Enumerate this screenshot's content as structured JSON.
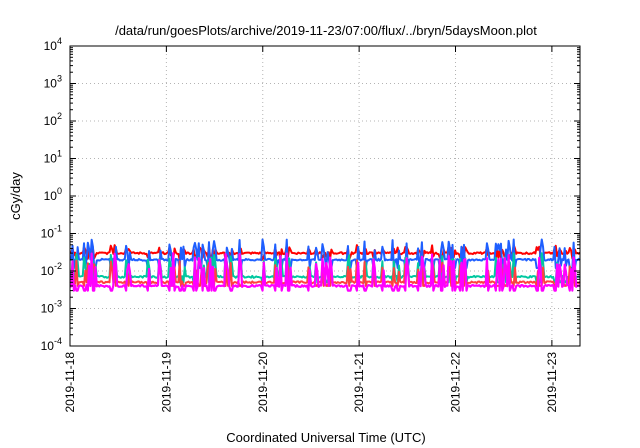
{
  "chart_data": {
    "type": "line",
    "title": "/data/run/goesPlots/archive/2019-11-23/07:00/flux/../bryn/5daysMoon.plot",
    "xlabel": "Coordinated Universal Time (UTC)",
    "ylabel": "cGy/day",
    "yscale": "log",
    "ylim": [
      0.0001,
      10000
    ],
    "yticks": [
      {
        "base": "10",
        "exp": "-4",
        "value": 0.0001
      },
      {
        "base": "10",
        "exp": "-3",
        "value": 0.001
      },
      {
        "base": "10",
        "exp": "-2",
        "value": 0.01
      },
      {
        "base": "10",
        "exp": "-1",
        "value": 0.1
      },
      {
        "base": "10",
        "exp": "0",
        "value": 1
      },
      {
        "base": "10",
        "exp": "1",
        "value": 10
      },
      {
        "base": "10",
        "exp": "2",
        "value": 100
      },
      {
        "base": "10",
        "exp": "3",
        "value": 1000
      },
      {
        "base": "10",
        "exp": "4",
        "value": 10000
      }
    ],
    "xlim": [
      "2019-11-18 00:00",
      "2019-11-23 07:00"
    ],
    "xticks": [
      "2019-11-18",
      "2019-11-19",
      "2019-11-20",
      "2019-11-21",
      "2019-11-22",
      "2019-11-23"
    ],
    "grid": true,
    "legend": "none",
    "series": [
      {
        "color": "#ff0000",
        "baseline": 0.03,
        "spike_peak": 0.05,
        "y_max": 0.065,
        "y_min": 0.02
      },
      {
        "color": "#1e5fff",
        "baseline": 0.02,
        "spike_peak": 0.07,
        "y_max": 0.08,
        "y_min": 0.012
      },
      {
        "color": "#00c8a0",
        "baseline": 0.007,
        "spike_peak": 0.03,
        "y_max": 0.04,
        "y_min": 0.005
      },
      {
        "color": "#ff4040",
        "baseline": 0.005,
        "spike_peak": 0.02,
        "y_max": 0.03,
        "y_min": 0.004
      },
      {
        "color": "#ff00ff",
        "baseline": 0.004,
        "spike_peak": 0.03,
        "y_max": 0.045,
        "y_min": 0.003
      }
    ]
  }
}
